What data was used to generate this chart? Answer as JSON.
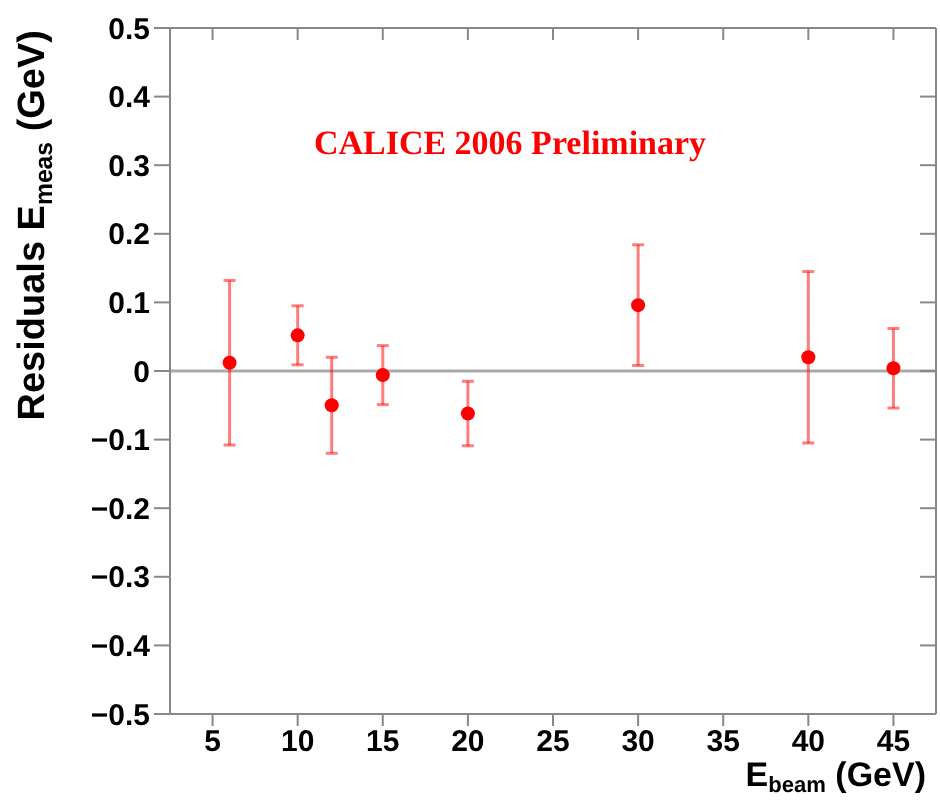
{
  "chart_data": {
    "type": "scatter",
    "xlabel": "E$_{beam}$ (GeV)",
    "ylabel": "Residuals E$_{meas}$ (GeV)",
    "annotations": [
      "CALICE 2006 Preliminary"
    ],
    "x": [
      6,
      10,
      12,
      15,
      20,
      30,
      40,
      45
    ],
    "series": [
      {
        "color": "#ff0000",
        "values": [
          0.012,
          0.052,
          -0.05,
          -0.006,
          -0.062,
          0.096,
          0.02,
          0.004
        ],
        "errors": [
          0.12,
          0.043,
          0.07,
          0.043,
          0.047,
          0.088,
          0.125,
          0.058
        ]
      }
    ],
    "xlim": [
      2.5,
      47.5
    ],
    "xticks": [
      5,
      10,
      15,
      20,
      25,
      30,
      35,
      40,
      45
    ],
    "ylim": [
      -0.5,
      0.5
    ],
    "yticks": [
      -0.5,
      -0.4,
      -0.3,
      -0.2,
      -0.1,
      0,
      0.1,
      0.2,
      0.3,
      0.4,
      0.5
    ],
    "ref_lines": [
      {
        "axis": "y",
        "value": 0,
        "color": "#aaaaaa"
      }
    ],
    "marker": "circle"
  }
}
